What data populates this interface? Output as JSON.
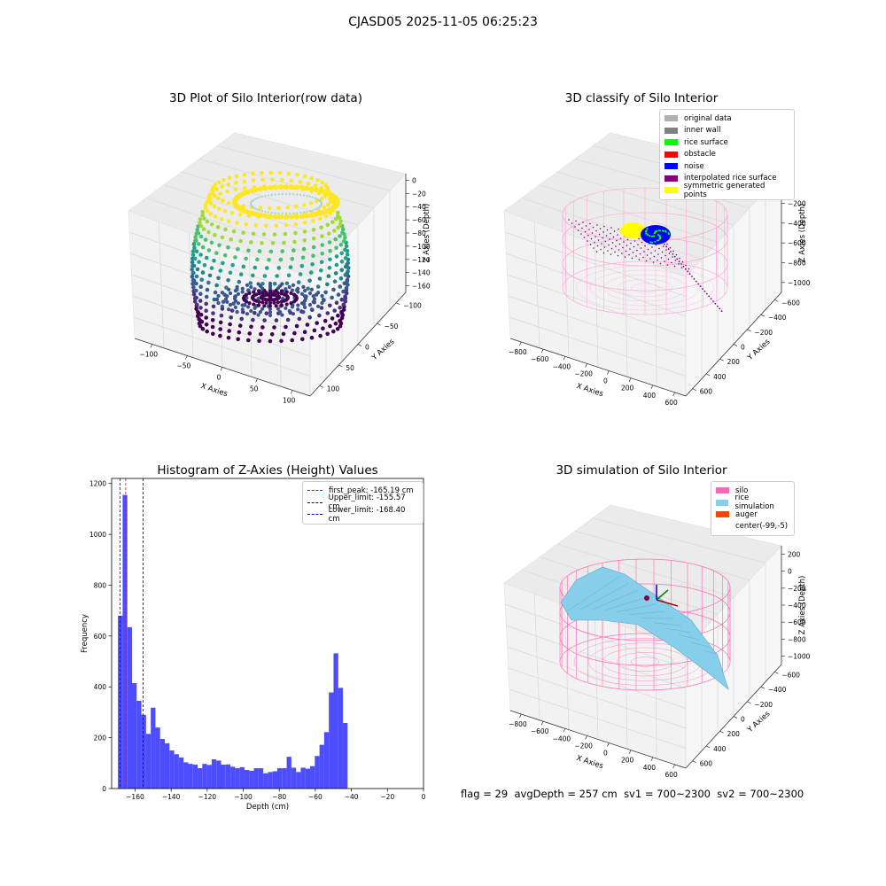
{
  "figure": {
    "title": "CJASD05 2025-11-05 06:25:23",
    "footer": {
      "flag": "flag = 29",
      "avg_depth": "avgDepth = 257 cm",
      "sv1": "sv1 = 700~2300",
      "sv2": "sv2 = 700~2300"
    }
  },
  "chart_data": [
    {
      "type": "scatter",
      "subplot": "top-left",
      "projection": "3d",
      "title": "3D Plot of Silo Interior(row data)",
      "xlabel": "X Axies",
      "ylabel": "Y Axies",
      "zlabel": "Z Axies (Depth)",
      "xticks": [
        "−100",
        "−50",
        "0",
        "50",
        "100"
      ],
      "yticks": [
        "100",
        "50",
        "0",
        "−50",
        "−100"
      ],
      "zticks": [
        "0",
        "−20",
        "−40",
        "−60",
        "−80",
        "−100",
        "−120",
        "−140",
        "−160"
      ],
      "zlim": [
        -170,
        0
      ],
      "colormap": "viridis",
      "grid": true
    },
    {
      "type": "scatter",
      "subplot": "top-right",
      "projection": "3d",
      "title": "3D classify of Silo Interior",
      "xlabel": "X Axies",
      "ylabel": "Y Axies",
      "zlabel": "Z Axies (Depth)",
      "xticks": [
        "−800",
        "−600",
        "−400",
        "−200",
        "0",
        "200",
        "400",
        "600"
      ],
      "yticks": [
        "600",
        "400",
        "200",
        "0",
        "−200",
        "−400",
        "−600"
      ],
      "zticks": [
        "0",
        "−200",
        "−400",
        "−600",
        "−800",
        "−1000"
      ],
      "legend_position": "top-right",
      "legend": [
        {
          "label": "original data",
          "color": "#b0b0b0"
        },
        {
          "label": "inner wall",
          "color": "#808080"
        },
        {
          "label": "rice surface",
          "color": "#00ff00"
        },
        {
          "label": "obstacle",
          "color": "#ff0000"
        },
        {
          "label": "noise",
          "color": "#0000ff"
        },
        {
          "label": "interpolated rice surface",
          "color": "#800080"
        },
        {
          "label": "symmetric generated points",
          "color": "#ffff00"
        }
      ],
      "grid": true
    },
    {
      "type": "bar",
      "subplot": "bottom-left",
      "title": "Histogram of Z-Axies (Height) Values",
      "xlabel": "Depth (cm)",
      "ylabel": "Frequency",
      "xlim": [
        -173,
        0
      ],
      "ylim": [
        0,
        1220
      ],
      "xticks": [
        "−160",
        "−140",
        "−120",
        "−100",
        "−80",
        "−60",
        "−40",
        "−20",
        "0"
      ],
      "yticks": [
        "0",
        "200",
        "400",
        "600",
        "800",
        "1000",
        "1200"
      ],
      "bar_color": "#4d4dff",
      "bin_width": 2.6,
      "bins": [
        [
          -169.5,
          680
        ],
        [
          -166.9,
          1155
        ],
        [
          -164.3,
          635
        ],
        [
          -161.7,
          415
        ],
        [
          -159.1,
          345
        ],
        [
          -156.5,
          290
        ],
        [
          -153.9,
          215
        ],
        [
          -151.3,
          318
        ],
        [
          -148.7,
          240
        ],
        [
          -146.1,
          195
        ],
        [
          -143.5,
          178
        ],
        [
          -140.9,
          150
        ],
        [
          -138.3,
          135
        ],
        [
          -135.7,
          122
        ],
        [
          -133.1,
          103
        ],
        [
          -130.5,
          97
        ],
        [
          -127.9,
          94
        ],
        [
          -125.3,
          80
        ],
        [
          -122.7,
          97
        ],
        [
          -120.1,
          93
        ],
        [
          -117.5,
          115
        ],
        [
          -114.9,
          110
        ],
        [
          -112.3,
          94
        ],
        [
          -109.7,
          95
        ],
        [
          -107.1,
          86
        ],
        [
          -104.5,
          80
        ],
        [
          -101.9,
          84
        ],
        [
          -99.3,
          73
        ],
        [
          -96.7,
          70
        ],
        [
          -94.1,
          80
        ],
        [
          -91.5,
          80
        ],
        [
          -88.9,
          60
        ],
        [
          -86.3,
          65
        ],
        [
          -83.7,
          68
        ],
        [
          -81.1,
          80
        ],
        [
          -78.5,
          80
        ],
        [
          -75.9,
          125
        ],
        [
          -73.3,
          82
        ],
        [
          -70.7,
          65
        ],
        [
          -68.1,
          82
        ],
        [
          -65.5,
          78
        ],
        [
          -62.9,
          88
        ],
        [
          -60.3,
          128
        ],
        [
          -57.7,
          172
        ],
        [
          -55.1,
          222
        ],
        [
          -52.5,
          378
        ],
        [
          -49.9,
          532
        ],
        [
          -47.3,
          396
        ],
        [
          -44.7,
          258
        ]
      ],
      "vlines": [
        {
          "label": "first_peak: -165.19 cm",
          "x": -165.19,
          "color": "#ff0000"
        },
        {
          "label": "Upper_limit: -155.57 cm",
          "x": -155.57,
          "color": "#00008b"
        },
        {
          "label": "Lower_limit: -168.40 cm",
          "x": -168.4,
          "color": "#0000cd"
        }
      ],
      "legend_position": "top-right"
    },
    {
      "type": "area",
      "subplot": "bottom-right",
      "projection": "3d",
      "title": "3D simulation of Silo Interior",
      "xlabel": "X Axies",
      "ylabel": "Y Axies",
      "zlabel": "Z Axies (Depth)",
      "xticks": [
        "−800",
        "−600",
        "−400",
        "−200",
        "0",
        "200",
        "400",
        "600"
      ],
      "yticks": [
        "600",
        "400",
        "200",
        "0",
        "−200",
        "−400",
        "−600"
      ],
      "zticks": [
        "200",
        "0",
        "−200",
        "−400",
        "−600",
        "−800",
        "−1000"
      ],
      "legend_position": "top-right",
      "legend": [
        {
          "label": "silo",
          "color": "#ff69b4"
        },
        {
          "label": "rice simulation",
          "color": "#87ceeb"
        },
        {
          "label": "auger",
          "color": "#ff4500"
        },
        {
          "label": "center(-99,-5)",
          "color": "#ffffff"
        }
      ],
      "grid": true
    }
  ]
}
